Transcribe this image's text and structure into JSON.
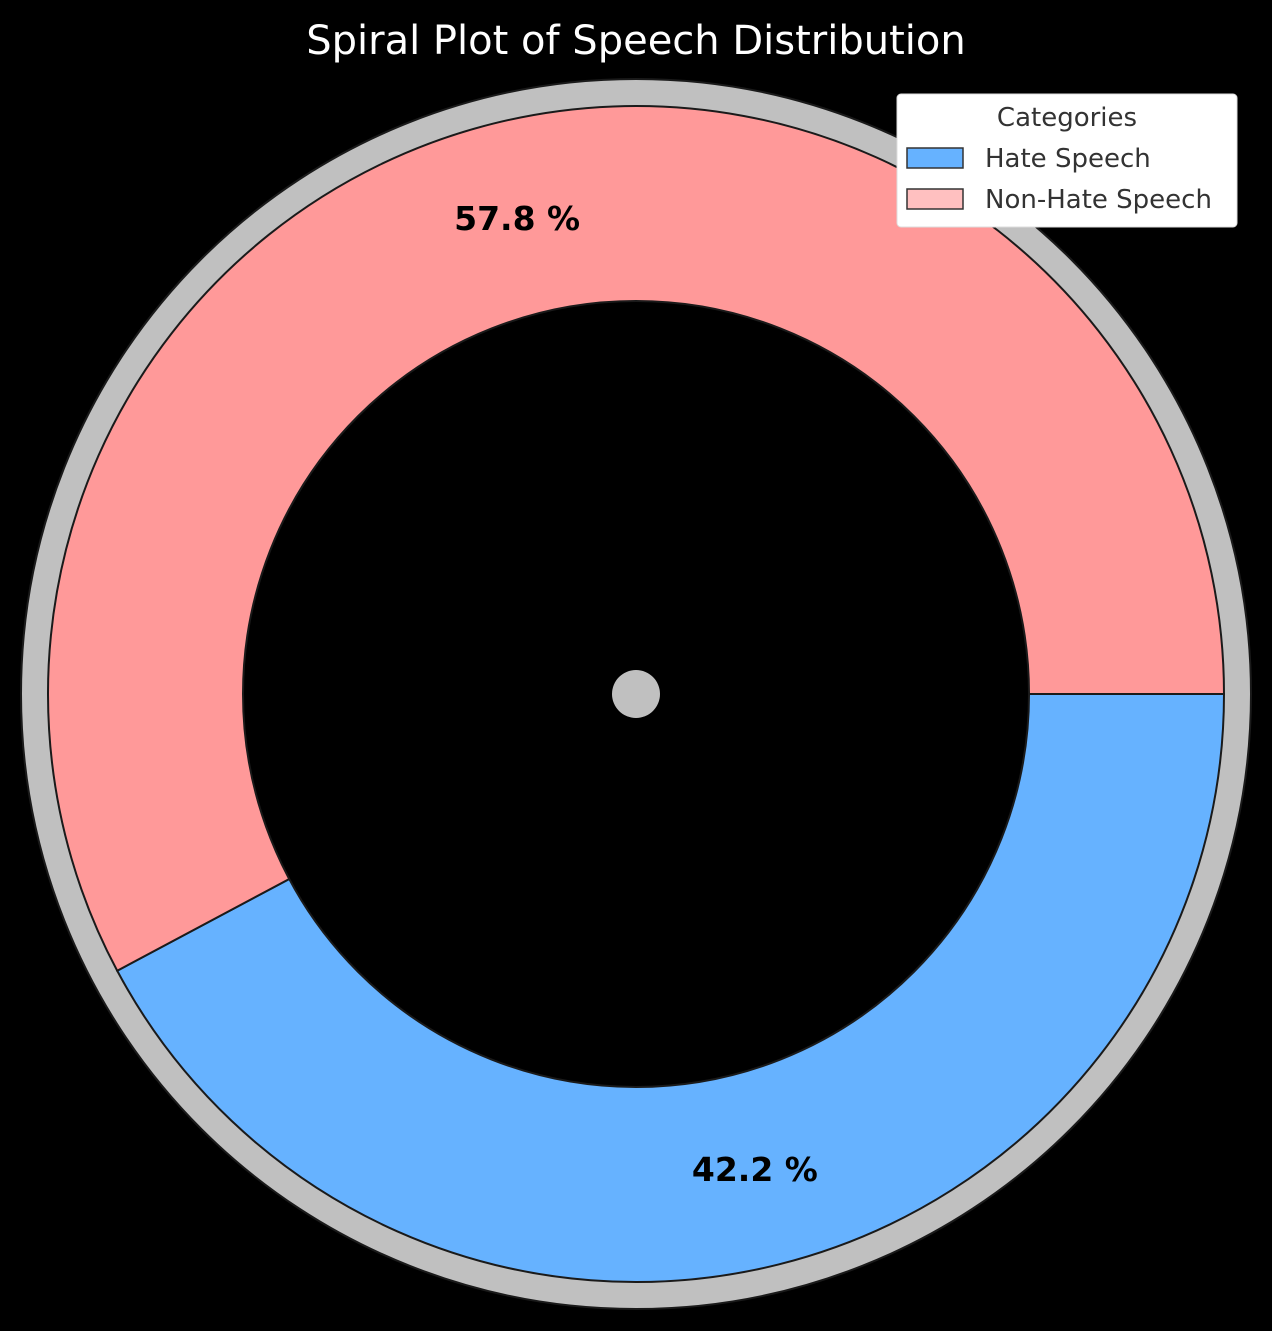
{
  "chart_data": {
    "type": "pie",
    "variant": "donut",
    "title": "Spiral Plot of Speech Distribution",
    "legend": {
      "title": "Categories",
      "placement": "top-right"
    },
    "series": [
      {
        "name": "Hate Speech",
        "value": 42.2,
        "label": "42.2 %",
        "color": "#66b2ff",
        "legend_color": "#66b2ff"
      },
      {
        "name": "Non-Hate Speech",
        "value": 57.8,
        "label": "57.8 %",
        "color": "#ff9999",
        "legend_color": "#ffc0c0"
      }
    ],
    "background": "#000000",
    "outer_ring_color": "#c0c0c0",
    "center_dot_color": "#c0c0c0",
    "edge_color": "#1a1a1a"
  }
}
